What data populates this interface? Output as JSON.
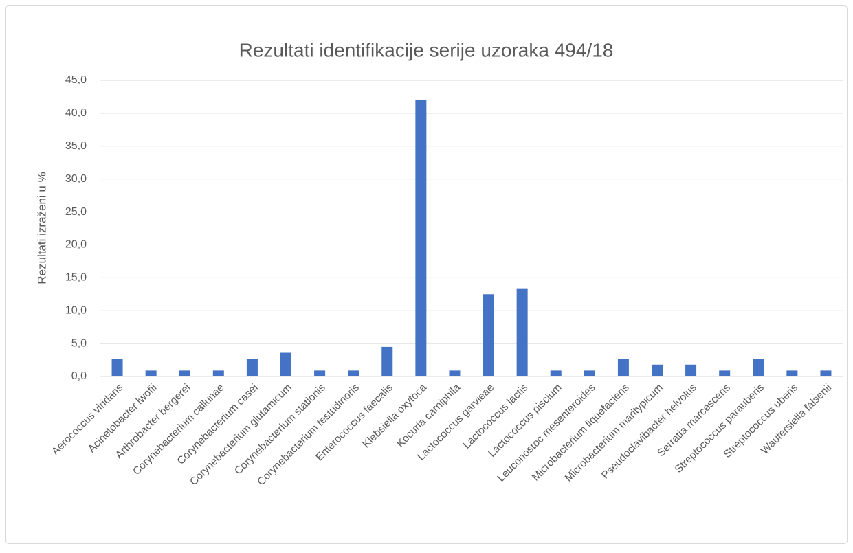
{
  "chart_data": {
    "type": "bar",
    "title": "Rezultati identifikacije serije uzoraka 494/18",
    "y_label": "Rezultati izraženi u %",
    "categories": [
      "Aerococcus viridans",
      "Acinetobacter lwofii",
      "Arthrobacter bergerei",
      "Corynebacterium callunae",
      "Corynebacterium casei",
      "Corynebacterium glutamicum",
      "Corynebacterium stationis",
      "Corynebacterium testudinoris",
      "Enterococcus faecalis",
      "Klebsiella oxytoca",
      "Kocuria carniphila",
      "Lactococcus garvieae",
      "Lactococcus lactis",
      "Lactococcus piscium",
      "Leuconostoc mesenteroides",
      "Microbacterium liquefaciens",
      "Microbacterium maritypicum",
      "Pseudoclavibacter helvolus",
      "Serratia marcescens",
      "Streptococcus parauberis",
      "Streptococcus uberis",
      "Wautersiella falsenii"
    ],
    "values": [
      2.7,
      0.9,
      0.9,
      0.9,
      2.7,
      3.6,
      0.9,
      0.9,
      4.5,
      42.0,
      0.9,
      12.5,
      13.4,
      0.9,
      0.9,
      2.7,
      1.8,
      1.8,
      0.9,
      2.7,
      0.9,
      0.9
    ],
    "color": "#4472c4",
    "ylim": [
      0,
      45
    ],
    "yticks": [
      {
        "value": 0,
        "label": "0,0"
      },
      {
        "value": 5,
        "label": "5,0"
      },
      {
        "value": 10,
        "label": "10,0"
      },
      {
        "value": 15,
        "label": "15,0"
      },
      {
        "value": 20,
        "label": "20,0"
      },
      {
        "value": 25,
        "label": "25,0"
      },
      {
        "value": 30,
        "label": "30,0"
      },
      {
        "value": 35,
        "label": "35,0"
      },
      {
        "value": 40,
        "label": "40,0"
      },
      {
        "value": 45,
        "label": "45,0"
      }
    ],
    "grid": true
  }
}
